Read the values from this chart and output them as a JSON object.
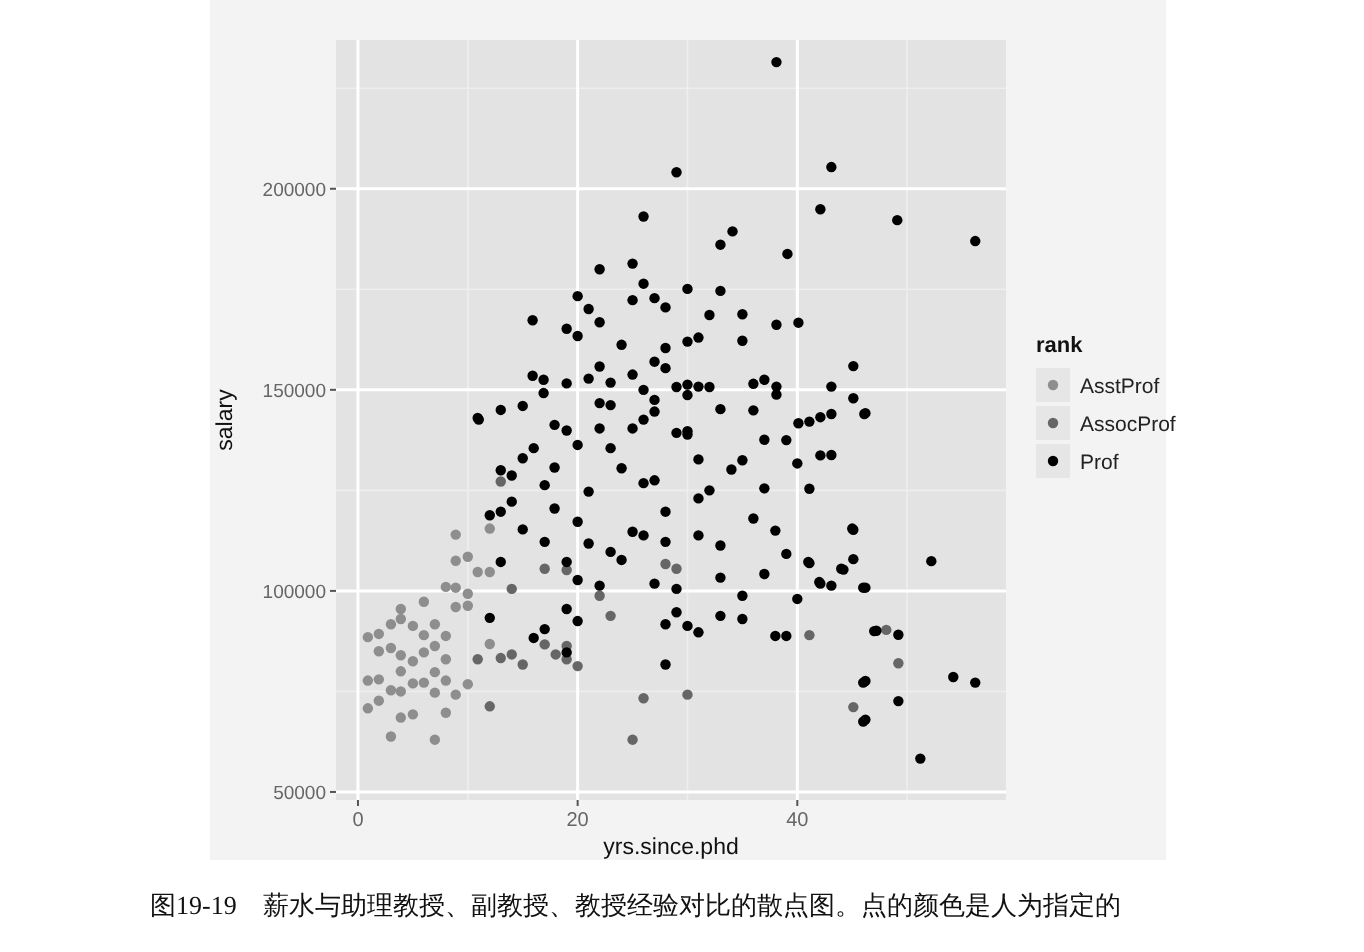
{
  "chart_data": {
    "type": "scatter",
    "xlabel": "yrs.since.phd",
    "ylabel": "salary",
    "legend_title": "rank",
    "legend": "right",
    "grid": true,
    "marker": "circle",
    "xlim": [
      -2,
      59
    ],
    "ylim": [
      48000,
      237000
    ],
    "xticks": [
      0,
      20,
      40
    ],
    "yticks": [
      50000,
      100000,
      150000,
      200000
    ],
    "annotations": [
      "图19-19　薪水与助理教授、副教授、教授经验对比的散点图。点的颜色是人为指定的"
    ],
    "series": [
      {
        "name": "AsstProf",
        "color": "#8e8e8e",
        "x": [
          0.9,
          0.9,
          0.9,
          1.9,
          1.9,
          1.9,
          1.9,
          3,
          3,
          3,
          3,
          3.9,
          3.9,
          3.9,
          3.9,
          3.9,
          3.9,
          5,
          5,
          5,
          5,
          6,
          6,
          6,
          6,
          7,
          7,
          7,
          7,
          7,
          8,
          8,
          8,
          8,
          8,
          8.9,
          8.9,
          8.9,
          8.9,
          10,
          10,
          10,
          10,
          10.9,
          12,
          12,
          12,
          8.9
        ],
        "values": [
          88500,
          77700,
          70800,
          89300,
          85000,
          78000,
          72700,
          91700,
          85800,
          75300,
          63800,
          95500,
          93000,
          84000,
          80000,
          75000,
          68500,
          91300,
          82500,
          77000,
          69300,
          97300,
          89000,
          84700,
          77200,
          91700,
          86300,
          79800,
          74700,
          63000,
          101000,
          88800,
          83000,
          77700,
          69700,
          114000,
          107500,
          100800,
          74200,
          108500,
          99300,
          96300,
          76800,
          104700,
          115500,
          104700,
          86800,
          96000
        ]
      },
      {
        "name": "AssocProf",
        "color": "#666666",
        "x": [
          12,
          10.9,
          13,
          14,
          15,
          17,
          18,
          19,
          19,
          20,
          23,
          22,
          25,
          26,
          28,
          29,
          30,
          13,
          14,
          17,
          19,
          41.1,
          48.1,
          49.2,
          45.1
        ],
        "values": [
          71300,
          83000,
          83300,
          84200,
          81700,
          86700,
          84200,
          86300,
          83000,
          81300,
          93800,
          98800,
          63000,
          73300,
          106700,
          105500,
          74200,
          127200,
          100500,
          105500,
          105200,
          89000,
          90300,
          82000,
          71100
        ]
      },
      {
        "name": "Prof",
        "color": "#000000",
        "x": [
          38.1,
          29,
          43.1,
          42.1,
          26,
          34.1,
          33,
          39.1,
          22,
          25,
          26,
          20,
          25,
          27,
          30,
          33,
          21,
          28,
          32,
          35,
          15.9,
          22,
          38.1,
          40.1,
          19,
          20,
          24,
          28,
          30,
          31,
          35,
          27,
          22,
          28,
          45.1,
          15.9,
          16.9,
          19,
          21,
          23,
          25,
          26,
          29,
          30,
          31,
          32,
          36,
          37,
          38.1,
          43.1,
          45.1,
          16.9,
          22,
          23,
          27,
          30,
          38.1,
          11,
          13,
          15,
          17.9,
          19,
          22,
          25,
          26,
          27,
          33,
          36,
          40.1,
          41.1,
          42.1,
          43.1,
          46.1,
          29,
          30,
          37,
          49.1,
          56.2,
          46.2,
          45.1,
          52.2,
          45.1,
          44.2,
          46.2,
          43.1,
          42.1,
          41.1,
          47.2,
          49.2,
          46.2,
          54.2,
          56.2,
          49.2,
          46.2,
          51.2,
          41.1,
          43.1,
          42.1,
          10.9,
          12,
          13,
          13,
          13,
          14,
          14,
          15,
          15,
          16,
          17,
          17,
          17.9,
          17.9,
          19,
          19,
          20,
          20,
          20,
          20,
          21,
          21,
          22,
          23,
          23,
          24,
          25,
          26,
          27,
          27,
          28,
          28,
          28,
          28,
          29,
          29,
          30,
          31,
          31,
          31,
          32,
          33,
          33,
          34,
          35,
          35,
          36,
          37,
          37,
          38,
          38,
          39,
          39,
          39,
          40,
          40,
          41,
          42,
          44,
          45,
          46,
          46,
          46,
          47,
          31,
          33,
          35,
          30,
          12,
          16,
          17,
          19,
          26,
          24
        ],
        "values": [
          231500,
          204100,
          205400,
          194900,
          193100,
          189400,
          186100,
          183800,
          180000,
          181400,
          176400,
          173300,
          172300,
          172800,
          175100,
          174600,
          170100,
          170500,
          168600,
          168800,
          167300,
          166800,
          166200,
          166700,
          165200,
          163400,
          161200,
          160400,
          162000,
          163000,
          162200,
          157000,
          155800,
          155400,
          155900,
          153500,
          152500,
          151600,
          152800,
          151800,
          153800,
          150000,
          150700,
          151300,
          150800,
          150700,
          151500,
          152500,
          150800,
          150800,
          147900,
          149200,
          146700,
          146200,
          147500,
          148700,
          148800,
          142600,
          145000,
          146000,
          141300,
          139900,
          140400,
          140400,
          142600,
          144600,
          145200,
          144900,
          141700,
          142100,
          143200,
          144000,
          144000,
          139300,
          138900,
          137600,
          192200,
          187000,
          144200,
          115200,
          107400,
          107900,
          105300,
          100800,
          101300,
          101800,
          106900,
          90100,
          89100,
          77600,
          78600,
          77200,
          72600,
          68000,
          58300,
          125400,
          133800,
          133700,
          143000,
          118800,
          130000,
          119700,
          107200,
          122200,
          128700,
          133000,
          115300,
          135500,
          126300,
          112200,
          130700,
          120500,
          107200,
          95500,
          136300,
          117200,
          102700,
          92500,
          111800,
          124700,
          101300,
          135500,
          109700,
          107700,
          114700,
          126800,
          127500,
          101800,
          119700,
          112200,
          91700,
          81700,
          100500,
          94700,
          139700,
          132700,
          123000,
          113800,
          125000,
          111300,
          103300,
          130200,
          132500,
          98800,
          118000,
          125500,
          104200,
          115000,
          88800,
          137500,
          109200,
          88800,
          131700,
          98000,
          107200,
          102200,
          105500,
          115500,
          100800,
          77200,
          67500,
          90000,
          89700,
          93800,
          93000,
          91300,
          93300,
          88300,
          90500,
          84700,
          113800,
          130500
        ]
      }
    ]
  }
}
